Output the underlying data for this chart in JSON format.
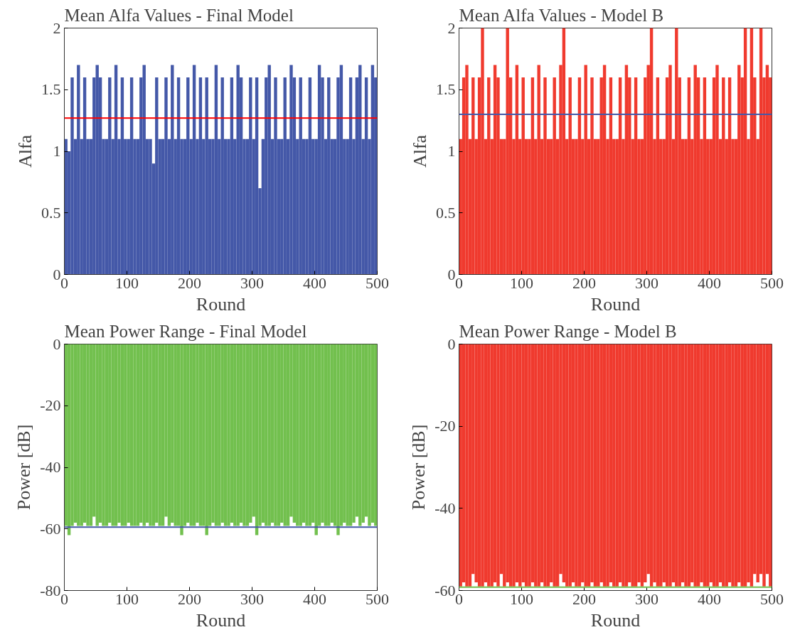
{
  "chart_data": [
    {
      "type": "bar",
      "title": "Mean Alfa Values - Final Model",
      "xlabel": "Round",
      "ylabel": "Alfa",
      "xlim": [
        0,
        500
      ],
      "xticks": [
        0,
        100,
        200,
        300,
        400,
        500
      ],
      "ylim": [
        0,
        2
      ],
      "yticks": [
        0,
        0.5,
        1,
        1.5,
        2
      ],
      "x": [
        5,
        10,
        15,
        20,
        25,
        30,
        35,
        40,
        45,
        50,
        55,
        60,
        65,
        70,
        75,
        80,
        85,
        90,
        95,
        100,
        105,
        110,
        115,
        120,
        125,
        130,
        135,
        140,
        145,
        150,
        155,
        160,
        165,
        170,
        175,
        180,
        185,
        190,
        195,
        200,
        205,
        210,
        215,
        220,
        225,
        230,
        235,
        240,
        245,
        250,
        255,
        260,
        265,
        270,
        275,
        280,
        285,
        290,
        295,
        300,
        305,
        310,
        315,
        320,
        325,
        330,
        335,
        340,
        345,
        350,
        355,
        360,
        365,
        370,
        375,
        380,
        385,
        390,
        395,
        400,
        405,
        410,
        415,
        420,
        425,
        430,
        435,
        440,
        445,
        450,
        455,
        460,
        465,
        470,
        475,
        480,
        485,
        490,
        495,
        500
      ],
      "series": [
        {
          "color": "#4458a8",
          "values": [
            1.1,
            1.0,
            1.6,
            1.1,
            1.7,
            1.1,
            1.6,
            1.1,
            1.1,
            1.6,
            1.7,
            1.6,
            1.1,
            1.1,
            1.6,
            1.1,
            1.7,
            1.1,
            1.6,
            1.1,
            1.1,
            1.6,
            1.1,
            1.1,
            1.6,
            1.7,
            1.1,
            1.1,
            0.9,
            1.6,
            1.1,
            1.1,
            1.6,
            1.1,
            1.7,
            1.1,
            1.6,
            1.1,
            1.1,
            1.6,
            1.1,
            1.7,
            1.1,
            1.6,
            1.1,
            1.6,
            1.1,
            1.1,
            1.7,
            1.1,
            1.6,
            1.1,
            1.1,
            1.6,
            1.1,
            1.7,
            1.6,
            1.1,
            1.1,
            1.6,
            1.1,
            1.6,
            0.7,
            1.1,
            1.6,
            1.7,
            1.1,
            1.6,
            1.1,
            1.1,
            1.6,
            1.1,
            1.7,
            1.6,
            1.1,
            1.6,
            1.1,
            1.1,
            1.6,
            1.1,
            1.1,
            1.7,
            1.6,
            1.1,
            1.6,
            1.1,
            1.1,
            1.6,
            1.7,
            1.1,
            1.1,
            1.6,
            1.1,
            1.6,
            1.7,
            1.1,
            1.6,
            1.1,
            1.7,
            1.6
          ]
        }
      ],
      "ref_lines": [
        {
          "axis": "y",
          "value": 1.27,
          "color": "#ff0000"
        }
      ]
    },
    {
      "type": "bar",
      "title": "Mean Alfa Values - Model B",
      "xlabel": "Round",
      "ylabel": "Alfa",
      "xlim": [
        0,
        500
      ],
      "xticks": [
        0,
        100,
        200,
        300,
        400,
        500
      ],
      "ylim": [
        0,
        2
      ],
      "yticks": [
        0,
        0.5,
        1,
        1.5,
        2
      ],
      "x": [
        5,
        10,
        15,
        20,
        25,
        30,
        35,
        40,
        45,
        50,
        55,
        60,
        65,
        70,
        75,
        80,
        85,
        90,
        95,
        100,
        105,
        110,
        115,
        120,
        125,
        130,
        135,
        140,
        145,
        150,
        155,
        160,
        165,
        170,
        175,
        180,
        185,
        190,
        195,
        200,
        205,
        210,
        215,
        220,
        225,
        230,
        235,
        240,
        245,
        250,
        255,
        260,
        265,
        270,
        275,
        280,
        285,
        290,
        295,
        300,
        305,
        310,
        315,
        320,
        325,
        330,
        335,
        340,
        345,
        350,
        355,
        360,
        365,
        370,
        375,
        380,
        385,
        390,
        395,
        400,
        405,
        410,
        415,
        420,
        425,
        430,
        435,
        440,
        445,
        450,
        455,
        460,
        465,
        470,
        475,
        480,
        485,
        490,
        495,
        500
      ],
      "series": [
        {
          "color": "#f03a2e",
          "values": [
            1.1,
            1.6,
            1.7,
            1.1,
            1.6,
            1.1,
            1.6,
            2,
            1.1,
            1.6,
            1.1,
            1.7,
            1.6,
            1.1,
            1.1,
            2,
            1.6,
            1.1,
            1.7,
            1.1,
            1.6,
            1.1,
            1.1,
            1.6,
            1.1,
            1.7,
            1.1,
            1.6,
            1.1,
            1.1,
            1.6,
            1.1,
            1.7,
            2,
            1.1,
            1.6,
            1.1,
            1.1,
            1.6,
            1.1,
            1.7,
            1.1,
            1.6,
            1.1,
            1.1,
            1.6,
            1.7,
            1.1,
            1.6,
            1.1,
            1.1,
            1.6,
            1.1,
            1.7,
            1.6,
            1.1,
            1.6,
            1.1,
            1.1,
            1.6,
            1.7,
            2,
            1.1,
            1.6,
            1.1,
            1.1,
            1.6,
            1.7,
            1.1,
            2,
            1.6,
            1.1,
            1.1,
            1.6,
            1.1,
            1.7,
            1.6,
            1.1,
            1.6,
            1.1,
            1.1,
            1.6,
            1.7,
            1.1,
            1.6,
            1.1,
            1.6,
            1.1,
            1.1,
            1.7,
            1.6,
            2,
            1.1,
            2,
            1.6,
            1.1,
            2,
            1.6,
            1.7,
            1.6
          ]
        }
      ],
      "ref_lines": [
        {
          "axis": "y",
          "value": 1.3,
          "color": "#4458a8"
        }
      ]
    },
    {
      "type": "bar",
      "title": "Mean Power Range - Final Model",
      "xlabel": "Round",
      "ylabel": "Power [dB]",
      "xlim": [
        0,
        500
      ],
      "xticks": [
        0,
        100,
        200,
        300,
        400,
        500
      ],
      "ylim": [
        -80,
        0
      ],
      "yticks": [
        -80,
        -60,
        -40,
        -20,
        0
      ],
      "x": [
        5,
        10,
        15,
        20,
        25,
        30,
        35,
        40,
        45,
        50,
        55,
        60,
        65,
        70,
        75,
        80,
        85,
        90,
        95,
        100,
        105,
        110,
        115,
        120,
        125,
        130,
        135,
        140,
        145,
        150,
        155,
        160,
        165,
        170,
        175,
        180,
        185,
        190,
        195,
        200,
        205,
        210,
        215,
        220,
        225,
        230,
        235,
        240,
        245,
        250,
        255,
        260,
        265,
        270,
        275,
        280,
        285,
        290,
        295,
        300,
        305,
        310,
        315,
        320,
        325,
        330,
        335,
        340,
        345,
        350,
        355,
        360,
        365,
        370,
        375,
        380,
        385,
        390,
        395,
        400,
        405,
        410,
        415,
        420,
        425,
        430,
        435,
        440,
        445,
        450,
        455,
        460,
        465,
        470,
        475,
        480,
        485,
        490,
        495,
        500
      ],
      "series": [
        {
          "color": "#72c04e",
          "values": [
            -59,
            -62,
            -59,
            -58,
            -59,
            -59,
            -58,
            -59,
            -59,
            -56,
            -59,
            -58,
            -59,
            -59,
            -58,
            -59,
            -59,
            -58,
            -59,
            -59,
            -58,
            -59,
            -59,
            -59,
            -58,
            -59,
            -58,
            -59,
            -59,
            -58,
            -59,
            -59,
            -56,
            -59,
            -58,
            -59,
            -59,
            -62,
            -59,
            -58,
            -59,
            -59,
            -58,
            -59,
            -59,
            -62,
            -59,
            -58,
            -59,
            -59,
            -58,
            -59,
            -59,
            -58,
            -59,
            -59,
            -58,
            -59,
            -59,
            -58,
            -56,
            -62,
            -59,
            -58,
            -59,
            -59,
            -58,
            -59,
            -59,
            -58,
            -59,
            -59,
            -56,
            -58,
            -59,
            -59,
            -58,
            -59,
            -59,
            -58,
            -62,
            -59,
            -58,
            -59,
            -59,
            -58,
            -59,
            -62,
            -59,
            -58,
            -59,
            -59,
            -58,
            -56,
            -59,
            -58,
            -56,
            -59,
            -58,
            -59
          ]
        }
      ],
      "ref_lines": [
        {
          "axis": "y",
          "value": -59.4,
          "color": "#4458a8"
        }
      ]
    },
    {
      "type": "bar",
      "title": "Mean Power Range - Model B",
      "xlabel": "Round",
      "ylabel": "Power [dB]",
      "xlim": [
        0,
        500
      ],
      "xticks": [
        0,
        100,
        200,
        300,
        400,
        500
      ],
      "ylim": [
        -60,
        0
      ],
      "yticks": [
        -60,
        -40,
        -20,
        0
      ],
      "x": [
        5,
        10,
        15,
        20,
        25,
        30,
        35,
        40,
        45,
        50,
        55,
        60,
        65,
        70,
        75,
        80,
        85,
        90,
        95,
        100,
        105,
        110,
        115,
        120,
        125,
        130,
        135,
        140,
        145,
        150,
        155,
        160,
        165,
        170,
        175,
        180,
        185,
        190,
        195,
        200,
        205,
        210,
        215,
        220,
        225,
        230,
        235,
        240,
        245,
        250,
        255,
        260,
        265,
        270,
        275,
        280,
        285,
        290,
        295,
        300,
        305,
        310,
        315,
        320,
        325,
        330,
        335,
        340,
        345,
        350,
        355,
        360,
        365,
        370,
        375,
        380,
        385,
        390,
        395,
        400,
        405,
        410,
        415,
        420,
        425,
        430,
        435,
        440,
        445,
        450,
        455,
        460,
        465,
        470,
        475,
        480,
        485,
        490,
        495,
        500
      ],
      "series": [
        {
          "color": "#f03a2e",
          "values": [
            -59,
            -58,
            -59,
            -59,
            -56,
            -58,
            -59,
            -59,
            -58,
            -59,
            -59,
            -58,
            -59,
            -56,
            -59,
            -58,
            -59,
            -59,
            -58,
            -59,
            -58,
            -59,
            -59,
            -58,
            -59,
            -59,
            -58,
            -59,
            -59,
            -58,
            -59,
            -59,
            -56,
            -58,
            -59,
            -59,
            -58,
            -59,
            -59,
            -58,
            -59,
            -59,
            -58,
            -59,
            -59,
            -58,
            -59,
            -59,
            -58,
            -59,
            -59,
            -58,
            -59,
            -59,
            -58,
            -59,
            -59,
            -58,
            -59,
            -58,
            -56,
            -59,
            -58,
            -59,
            -59,
            -58,
            -59,
            -59,
            -58,
            -59,
            -59,
            -58,
            -59,
            -59,
            -58,
            -59,
            -59,
            -58,
            -59,
            -59,
            -58,
            -59,
            -59,
            -58,
            -59,
            -59,
            -58,
            -59,
            -59,
            -58,
            -59,
            -59,
            -58,
            -59,
            -56,
            -58,
            -56,
            -59,
            -56,
            -59
          ]
        }
      ],
      "ref_lines": [
        {
          "axis": "y",
          "value": -59.2,
          "color": "#72c04e"
        }
      ]
    }
  ]
}
